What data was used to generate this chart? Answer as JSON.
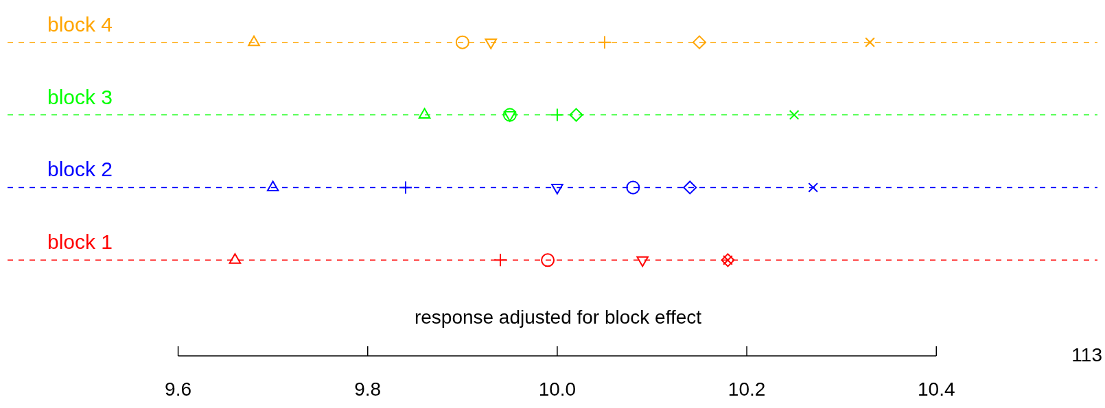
{
  "chart_data": {
    "type": "scatter",
    "orientation": "horizontal",
    "xlabel": "response adjusted for block effect",
    "categories": [
      "block 4",
      "block 3",
      "block 2",
      "block 1"
    ],
    "xlim": [
      9.42,
      10.57
    ],
    "xticks": [
      {
        "value": 9.6,
        "label": "9.6"
      },
      {
        "value": 9.8,
        "label": "9.8"
      },
      {
        "value": 10.0,
        "label": "10.0"
      },
      {
        "value": 10.2,
        "label": "10.2"
      },
      {
        "value": 10.4,
        "label": "10.4"
      }
    ],
    "series": [
      {
        "marker": "triangle",
        "colors": [
          "#ffa500",
          "#00ff00",
          "#0000ff",
          "#ff0000"
        ],
        "values": [
          9.68,
          9.86,
          9.7,
          9.66
        ]
      },
      {
        "marker": "circle",
        "colors": [
          "#ffa500",
          "#00ff00",
          "#0000ff",
          "#ff0000"
        ],
        "values": [
          9.9,
          9.95,
          10.08,
          9.99
        ]
      },
      {
        "marker": "triangle-down",
        "colors": [
          "#ffa500",
          "#00ff00",
          "#0000ff",
          "#ff0000"
        ],
        "values": [
          9.93,
          9.95,
          10.0,
          10.09
        ]
      },
      {
        "marker": "plus",
        "colors": [
          "#ffa500",
          "#00ff00",
          "#0000ff",
          "#ff0000"
        ],
        "values": [
          10.05,
          10.0,
          9.84,
          9.94
        ]
      },
      {
        "marker": "diamond",
        "colors": [
          "#ffa500",
          "#00ff00",
          "#0000ff",
          "#ff0000"
        ],
        "values": [
          10.15,
          10.02,
          10.14,
          10.18
        ]
      },
      {
        "marker": "x",
        "colors": [
          "#ffa500",
          "#00ff00",
          "#0000ff",
          "#ff0000"
        ],
        "values": [
          10.33,
          10.25,
          10.27,
          10.18
        ]
      }
    ],
    "ref_lines": [
      {
        "axis": "y",
        "value": "block 4",
        "color": "#ffa500",
        "line_style": "dashed"
      },
      {
        "axis": "y",
        "value": "block 3",
        "color": "#00ff00",
        "line_style": "dashed"
      },
      {
        "axis": "y",
        "value": "block 2",
        "color": "#0000ff",
        "line_style": "dashed"
      },
      {
        "axis": "y",
        "value": "block 1",
        "color": "#ff0000",
        "line_style": "dashed"
      }
    ],
    "annotations": [
      "113"
    ],
    "legend": false
  }
}
